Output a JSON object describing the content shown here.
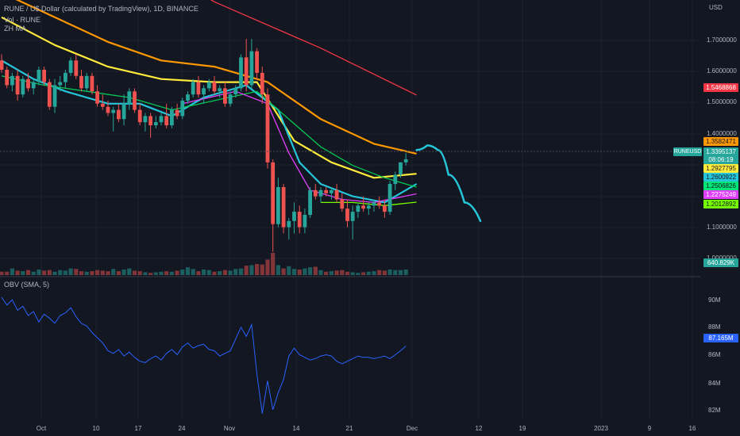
{
  "header": {
    "title": "RUNE / U$ Dollar (calculated by TradingView), 1D, BINANCE",
    "volume_label": "Vol · RUNE",
    "ma_label": "ZH MA",
    "obv_label": "OBV (SMA, 5)"
  },
  "axis": {
    "unit": "USD",
    "price_ticks": [
      "1.7000000",
      "1.6000000",
      "1.5000000",
      "1.4000000",
      "1.1000000",
      "1.0000000"
    ],
    "obv_ticks": [
      "90M",
      "88M",
      "86M",
      "84M",
      "82M"
    ],
    "time_ticks": [
      "Oct",
      "10",
      "17",
      "24",
      "Nov",
      "14",
      "21",
      "Dec",
      "12",
      "19",
      "2023",
      "9",
      "16"
    ]
  },
  "price_tags": [
    {
      "value": "1.5468868",
      "color": "#f23645",
      "text_color": "#ffffff"
    },
    {
      "value": "1.3582471",
      "color": "#ff9800",
      "text_color": "#131722"
    },
    {
      "value": "1.3395137",
      "color": "#26a69a",
      "text_color": "#ffffff"
    },
    {
      "value": "08:06:19",
      "color": "#26a69a",
      "text_color": "#ffffff"
    },
    {
      "value": "1.2927795",
      "color": "#ffeb3b",
      "text_color": "#131722"
    },
    {
      "value": "1.2600922",
      "color": "#26c6da",
      "text_color": "#131722"
    },
    {
      "value": "1.2506826",
      "color": "#00e676",
      "text_color": "#131722"
    },
    {
      "value": "1.2275249",
      "color": "#e040fb",
      "text_color": "#ffffff"
    },
    {
      "value": "1.2012892",
      "color": "#76ff03",
      "text_color": "#131722"
    },
    {
      "value": "640.829K",
      "color": "#26a69a",
      "text_color": "#ffffff"
    },
    {
      "value": "87.165M",
      "color": "#2962ff",
      "text_color": "#ffffff"
    }
  ],
  "symbol_tag": "RUNEUSD",
  "chart_data": {
    "type": "candlestick",
    "symbol": "RUNEUSD",
    "interval": "1D",
    "candles": [
      {
        "o": 1.66,
        "h": 1.68,
        "l": 1.62,
        "c": 1.63
      },
      {
        "o": 1.63,
        "h": 1.64,
        "l": 1.57,
        "c": 1.58
      },
      {
        "o": 1.58,
        "h": 1.62,
        "l": 1.56,
        "c": 1.61
      },
      {
        "o": 1.61,
        "h": 1.63,
        "l": 1.53,
        "c": 1.55
      },
      {
        "o": 1.55,
        "h": 1.61,
        "l": 1.54,
        "c": 1.6
      },
      {
        "o": 1.6,
        "h": 1.62,
        "l": 1.56,
        "c": 1.57
      },
      {
        "o": 1.57,
        "h": 1.6,
        "l": 1.55,
        "c": 1.59
      },
      {
        "o": 1.59,
        "h": 1.64,
        "l": 1.58,
        "c": 1.63
      },
      {
        "o": 1.63,
        "h": 1.64,
        "l": 1.58,
        "c": 1.59
      },
      {
        "o": 1.59,
        "h": 1.6,
        "l": 1.5,
        "c": 1.51
      },
      {
        "o": 1.51,
        "h": 1.6,
        "l": 1.49,
        "c": 1.58
      },
      {
        "o": 1.58,
        "h": 1.61,
        "l": 1.56,
        "c": 1.59
      },
      {
        "o": 1.59,
        "h": 1.63,
        "l": 1.57,
        "c": 1.62
      },
      {
        "o": 1.62,
        "h": 1.67,
        "l": 1.61,
        "c": 1.66
      },
      {
        "o": 1.66,
        "h": 1.68,
        "l": 1.6,
        "c": 1.61
      },
      {
        "o": 1.61,
        "h": 1.63,
        "l": 1.56,
        "c": 1.57
      },
      {
        "o": 1.57,
        "h": 1.62,
        "l": 1.56,
        "c": 1.61
      },
      {
        "o": 1.61,
        "h": 1.62,
        "l": 1.55,
        "c": 1.56
      },
      {
        "o": 1.56,
        "h": 1.58,
        "l": 1.51,
        "c": 1.52
      },
      {
        "o": 1.52,
        "h": 1.55,
        "l": 1.5,
        "c": 1.51
      },
      {
        "o": 1.51,
        "h": 1.53,
        "l": 1.48,
        "c": 1.49
      },
      {
        "o": 1.49,
        "h": 1.51,
        "l": 1.43,
        "c": 1.5
      },
      {
        "o": 1.5,
        "h": 1.52,
        "l": 1.46,
        "c": 1.47
      },
      {
        "o": 1.47,
        "h": 1.55,
        "l": 1.45,
        "c": 1.52
      },
      {
        "o": 1.52,
        "h": 1.57,
        "l": 1.5,
        "c": 1.56
      },
      {
        "o": 1.56,
        "h": 1.57,
        "l": 1.49,
        "c": 1.5
      },
      {
        "o": 1.5,
        "h": 1.52,
        "l": 1.45,
        "c": 1.46
      },
      {
        "o": 1.46,
        "h": 1.49,
        "l": 1.43,
        "c": 1.48
      },
      {
        "o": 1.48,
        "h": 1.49,
        "l": 1.41,
        "c": 1.45
      },
      {
        "o": 1.45,
        "h": 1.48,
        "l": 1.44,
        "c": 1.46
      },
      {
        "o": 1.46,
        "h": 1.49,
        "l": 1.45,
        "c": 1.48
      },
      {
        "o": 1.48,
        "h": 1.52,
        "l": 1.44,
        "c": 1.45
      },
      {
        "o": 1.45,
        "h": 1.51,
        "l": 1.44,
        "c": 1.5
      },
      {
        "o": 1.5,
        "h": 1.52,
        "l": 1.47,
        "c": 1.48
      },
      {
        "o": 1.48,
        "h": 1.54,
        "l": 1.47,
        "c": 1.53
      },
      {
        "o": 1.53,
        "h": 1.56,
        "l": 1.52,
        "c": 1.55
      },
      {
        "o": 1.55,
        "h": 1.6,
        "l": 1.54,
        "c": 1.59
      },
      {
        "o": 1.59,
        "h": 1.61,
        "l": 1.54,
        "c": 1.55
      },
      {
        "o": 1.55,
        "h": 1.58,
        "l": 1.52,
        "c": 1.57
      },
      {
        "o": 1.57,
        "h": 1.6,
        "l": 1.56,
        "c": 1.59
      },
      {
        "o": 1.59,
        "h": 1.61,
        "l": 1.55,
        "c": 1.56
      },
      {
        "o": 1.56,
        "h": 1.58,
        "l": 1.54,
        "c": 1.57
      },
      {
        "o": 1.57,
        "h": 1.59,
        "l": 1.51,
        "c": 1.52
      },
      {
        "o": 1.52,
        "h": 1.56,
        "l": 1.51,
        "c": 1.55
      },
      {
        "o": 1.55,
        "h": 1.58,
        "l": 1.54,
        "c": 1.57
      },
      {
        "o": 1.57,
        "h": 1.68,
        "l": 1.56,
        "c": 1.67
      },
      {
        "o": 1.67,
        "h": 1.73,
        "l": 1.56,
        "c": 1.58
      },
      {
        "o": 1.58,
        "h": 1.73,
        "l": 1.57,
        "c": 1.69
      },
      {
        "o": 1.69,
        "h": 1.7,
        "l": 1.6,
        "c": 1.62
      },
      {
        "o": 1.62,
        "h": 1.64,
        "l": 1.52,
        "c": 1.55
      },
      {
        "o": 1.55,
        "h": 1.57,
        "l": 1.31,
        "c": 1.33
      },
      {
        "o": 1.33,
        "h": 1.34,
        "l": 1.04,
        "c": 1.13
      },
      {
        "o": 1.13,
        "h": 1.28,
        "l": 1.12,
        "c": 1.25
      },
      {
        "o": 1.25,
        "h": 1.26,
        "l": 1.1,
        "c": 1.12
      },
      {
        "o": 1.12,
        "h": 1.15,
        "l": 1.08,
        "c": 1.14
      },
      {
        "o": 1.14,
        "h": 1.2,
        "l": 1.1,
        "c": 1.17
      },
      {
        "o": 1.17,
        "h": 1.19,
        "l": 1.1,
        "c": 1.12
      },
      {
        "o": 1.12,
        "h": 1.18,
        "l": 1.1,
        "c": 1.16
      },
      {
        "o": 1.16,
        "h": 1.25,
        "l": 1.15,
        "c": 1.24
      },
      {
        "o": 1.24,
        "h": 1.26,
        "l": 1.21,
        "c": 1.22
      },
      {
        "o": 1.22,
        "h": 1.25,
        "l": 1.2,
        "c": 1.24
      },
      {
        "o": 1.24,
        "h": 1.25,
        "l": 1.22,
        "c": 1.23
      },
      {
        "o": 1.23,
        "h": 1.25,
        "l": 1.21,
        "c": 1.24
      },
      {
        "o": 1.24,
        "h": 1.26,
        "l": 1.2,
        "c": 1.21
      },
      {
        "o": 1.21,
        "h": 1.23,
        "l": 1.17,
        "c": 1.18
      },
      {
        "o": 1.18,
        "h": 1.21,
        "l": 1.12,
        "c": 1.14
      },
      {
        "o": 1.14,
        "h": 1.19,
        "l": 1.08,
        "c": 1.17
      },
      {
        "o": 1.17,
        "h": 1.2,
        "l": 1.15,
        "c": 1.19
      },
      {
        "o": 1.19,
        "h": 1.22,
        "l": 1.17,
        "c": 1.18
      },
      {
        "o": 1.18,
        "h": 1.2,
        "l": 1.16,
        "c": 1.19
      },
      {
        "o": 1.19,
        "h": 1.21,
        "l": 1.17,
        "c": 1.2
      },
      {
        "o": 1.2,
        "h": 1.22,
        "l": 1.18,
        "c": 1.19
      },
      {
        "o": 1.19,
        "h": 1.21,
        "l": 1.15,
        "c": 1.17
      },
      {
        "o": 1.17,
        "h": 1.27,
        "l": 1.16,
        "c": 1.26
      },
      {
        "o": 1.26,
        "h": 1.3,
        "l": 1.24,
        "c": 1.29
      },
      {
        "o": 1.29,
        "h": 1.33,
        "l": 1.28,
        "c": 1.33
      },
      {
        "o": 1.33,
        "h": 1.36,
        "l": 1.32,
        "c": 1.34
      }
    ],
    "volume": [
      0.3,
      0.3,
      0.6,
      0.4,
      0.35,
      0.45,
      0.3,
      0.5,
      0.4,
      0.45,
      0.3,
      0.45,
      0.4,
      0.6,
      0.55,
      0.35,
      0.3,
      0.35,
      0.45,
      0.4,
      0.35,
      0.55,
      0.35,
      0.5,
      0.6,
      0.4,
      0.35,
      0.25,
      0.2,
      0.25,
      0.3,
      0.35,
      0.3,
      0.4,
      0.5,
      0.7,
      0.55,
      0.35,
      0.5,
      0.45,
      0.3,
      0.35,
      0.45,
      0.4,
      0.55,
      0.6,
      0.85,
      0.9,
      1.0,
      0.95,
      1.4,
      2.0,
      0.9,
      0.6,
      0.8,
      0.55,
      0.5,
      0.6,
      0.7,
      0.75,
      0.45,
      0.3,
      0.35,
      0.4,
      0.45,
      0.3,
      0.25,
      0.2,
      0.25,
      0.3,
      0.35,
      0.45,
      0.4,
      0.5,
      0.45,
      0.45,
      0.5
    ],
    "ma_lines": [
      {
        "color": "#f23645",
        "points": [
          [
            0,
            2.3
          ],
          [
            20,
            2.05
          ],
          [
            40,
            1.85
          ],
          [
            60,
            1.7
          ],
          [
            78,
            1.548
          ]
        ]
      },
      {
        "color": "#ff9800",
        "points": [
          [
            0,
            1.88
          ],
          [
            10,
            1.8
          ],
          [
            20,
            1.72
          ],
          [
            30,
            1.66
          ],
          [
            40,
            1.64
          ],
          [
            50,
            1.59
          ],
          [
            60,
            1.47
          ],
          [
            70,
            1.39
          ],
          [
            78,
            1.358
          ]
        ]
      },
      {
        "color": "#ffeb3b",
        "points": [
          [
            0,
            1.8
          ],
          [
            10,
            1.71
          ],
          [
            20,
            1.64
          ],
          [
            30,
            1.6
          ],
          [
            40,
            1.59
          ],
          [
            48,
            1.59
          ],
          [
            55,
            1.4
          ],
          [
            62,
            1.33
          ],
          [
            70,
            1.28
          ],
          [
            78,
            1.293
          ]
        ]
      },
      {
        "color": "#26c6da",
        "points": [
          [
            0,
            1.66
          ],
          [
            6,
            1.6
          ],
          [
            12,
            1.56
          ],
          [
            20,
            1.52
          ],
          [
            26,
            1.52
          ],
          [
            32,
            1.48
          ],
          [
            38,
            1.54
          ],
          [
            46,
            1.58
          ],
          [
            52,
            1.5
          ],
          [
            56,
            1.33
          ],
          [
            60,
            1.26
          ],
          [
            66,
            1.22
          ],
          [
            72,
            1.2
          ],
          [
            78,
            1.26
          ]
        ]
      },
      {
        "color": "#00c853",
        "points": [
          [
            0,
            1.61
          ],
          [
            8,
            1.58
          ],
          [
            16,
            1.56
          ],
          [
            24,
            1.54
          ],
          [
            32,
            1.5
          ],
          [
            40,
            1.53
          ],
          [
            48,
            1.56
          ],
          [
            54,
            1.47
          ],
          [
            60,
            1.38
          ],
          [
            66,
            1.32
          ],
          [
            72,
            1.28
          ],
          [
            78,
            1.25
          ]
        ]
      },
      {
        "color": "#e040fb",
        "points": [
          [
            34,
            1.52
          ],
          [
            44,
            1.56
          ],
          [
            50,
            1.52
          ],
          [
            54,
            1.36
          ],
          [
            58,
            1.24
          ],
          [
            64,
            1.21
          ],
          [
            70,
            1.2
          ],
          [
            78,
            1.228
          ]
        ]
      },
      {
        "color": "#76ff03",
        "points": [
          [
            60,
            1.2
          ],
          [
            66,
            1.2
          ],
          [
            72,
            1.19
          ],
          [
            78,
            1.201
          ]
        ]
      }
    ],
    "forecast_line": {
      "color": "#26c6da",
      "points": [
        [
          78,
          1.37
        ],
        [
          80,
          1.385
        ],
        [
          82,
          1.37
        ],
        [
          84,
          1.29
        ],
        [
          87,
          1.2
        ],
        [
          90,
          1.14
        ]
      ]
    },
    "obv": [
      90.9,
      90.3,
      90.7,
      89.9,
      90.2,
      89.5,
      89.8,
      89.0,
      89.6,
      89.3,
      88.9,
      89.5,
      89.7,
      90.1,
      89.4,
      88.9,
      88.7,
      88.2,
      87.8,
      87.4,
      86.8,
      86.6,
      86.9,
      86.4,
      86.7,
      86.3,
      86.0,
      85.9,
      86.2,
      86.4,
      86.1,
      86.6,
      86.9,
      86.5,
      87.1,
      87.4,
      87.0,
      87.2,
      87.3,
      86.9,
      86.8,
      86.4,
      86.6,
      86.8,
      87.7,
      88.6,
      87.9,
      88.8,
      85.0,
      82.0,
      84.5,
      82.3,
      83.6,
      84.6,
      86.4,
      87.0,
      86.5,
      86.3,
      86.1,
      86.2,
      86.4,
      86.5,
      86.4,
      86.0,
      85.8,
      86.0,
      86.2,
      86.4,
      86.3,
      86.3,
      86.2,
      86.3,
      86.4,
      86.2,
      86.5,
      86.8,
      87.165
    ],
    "price_axis_range": [
      0.97,
      1.82
    ],
    "obv_axis_range": [
      81.5,
      91.8
    ],
    "legend_placement": "top-left",
    "grid": true,
    "colors": {
      "up": "#26a69a",
      "down": "#ef5350",
      "vol_up": "#26a69a",
      "vol_down": "#ef5350",
      "obv_line": "#2962ff"
    }
  }
}
